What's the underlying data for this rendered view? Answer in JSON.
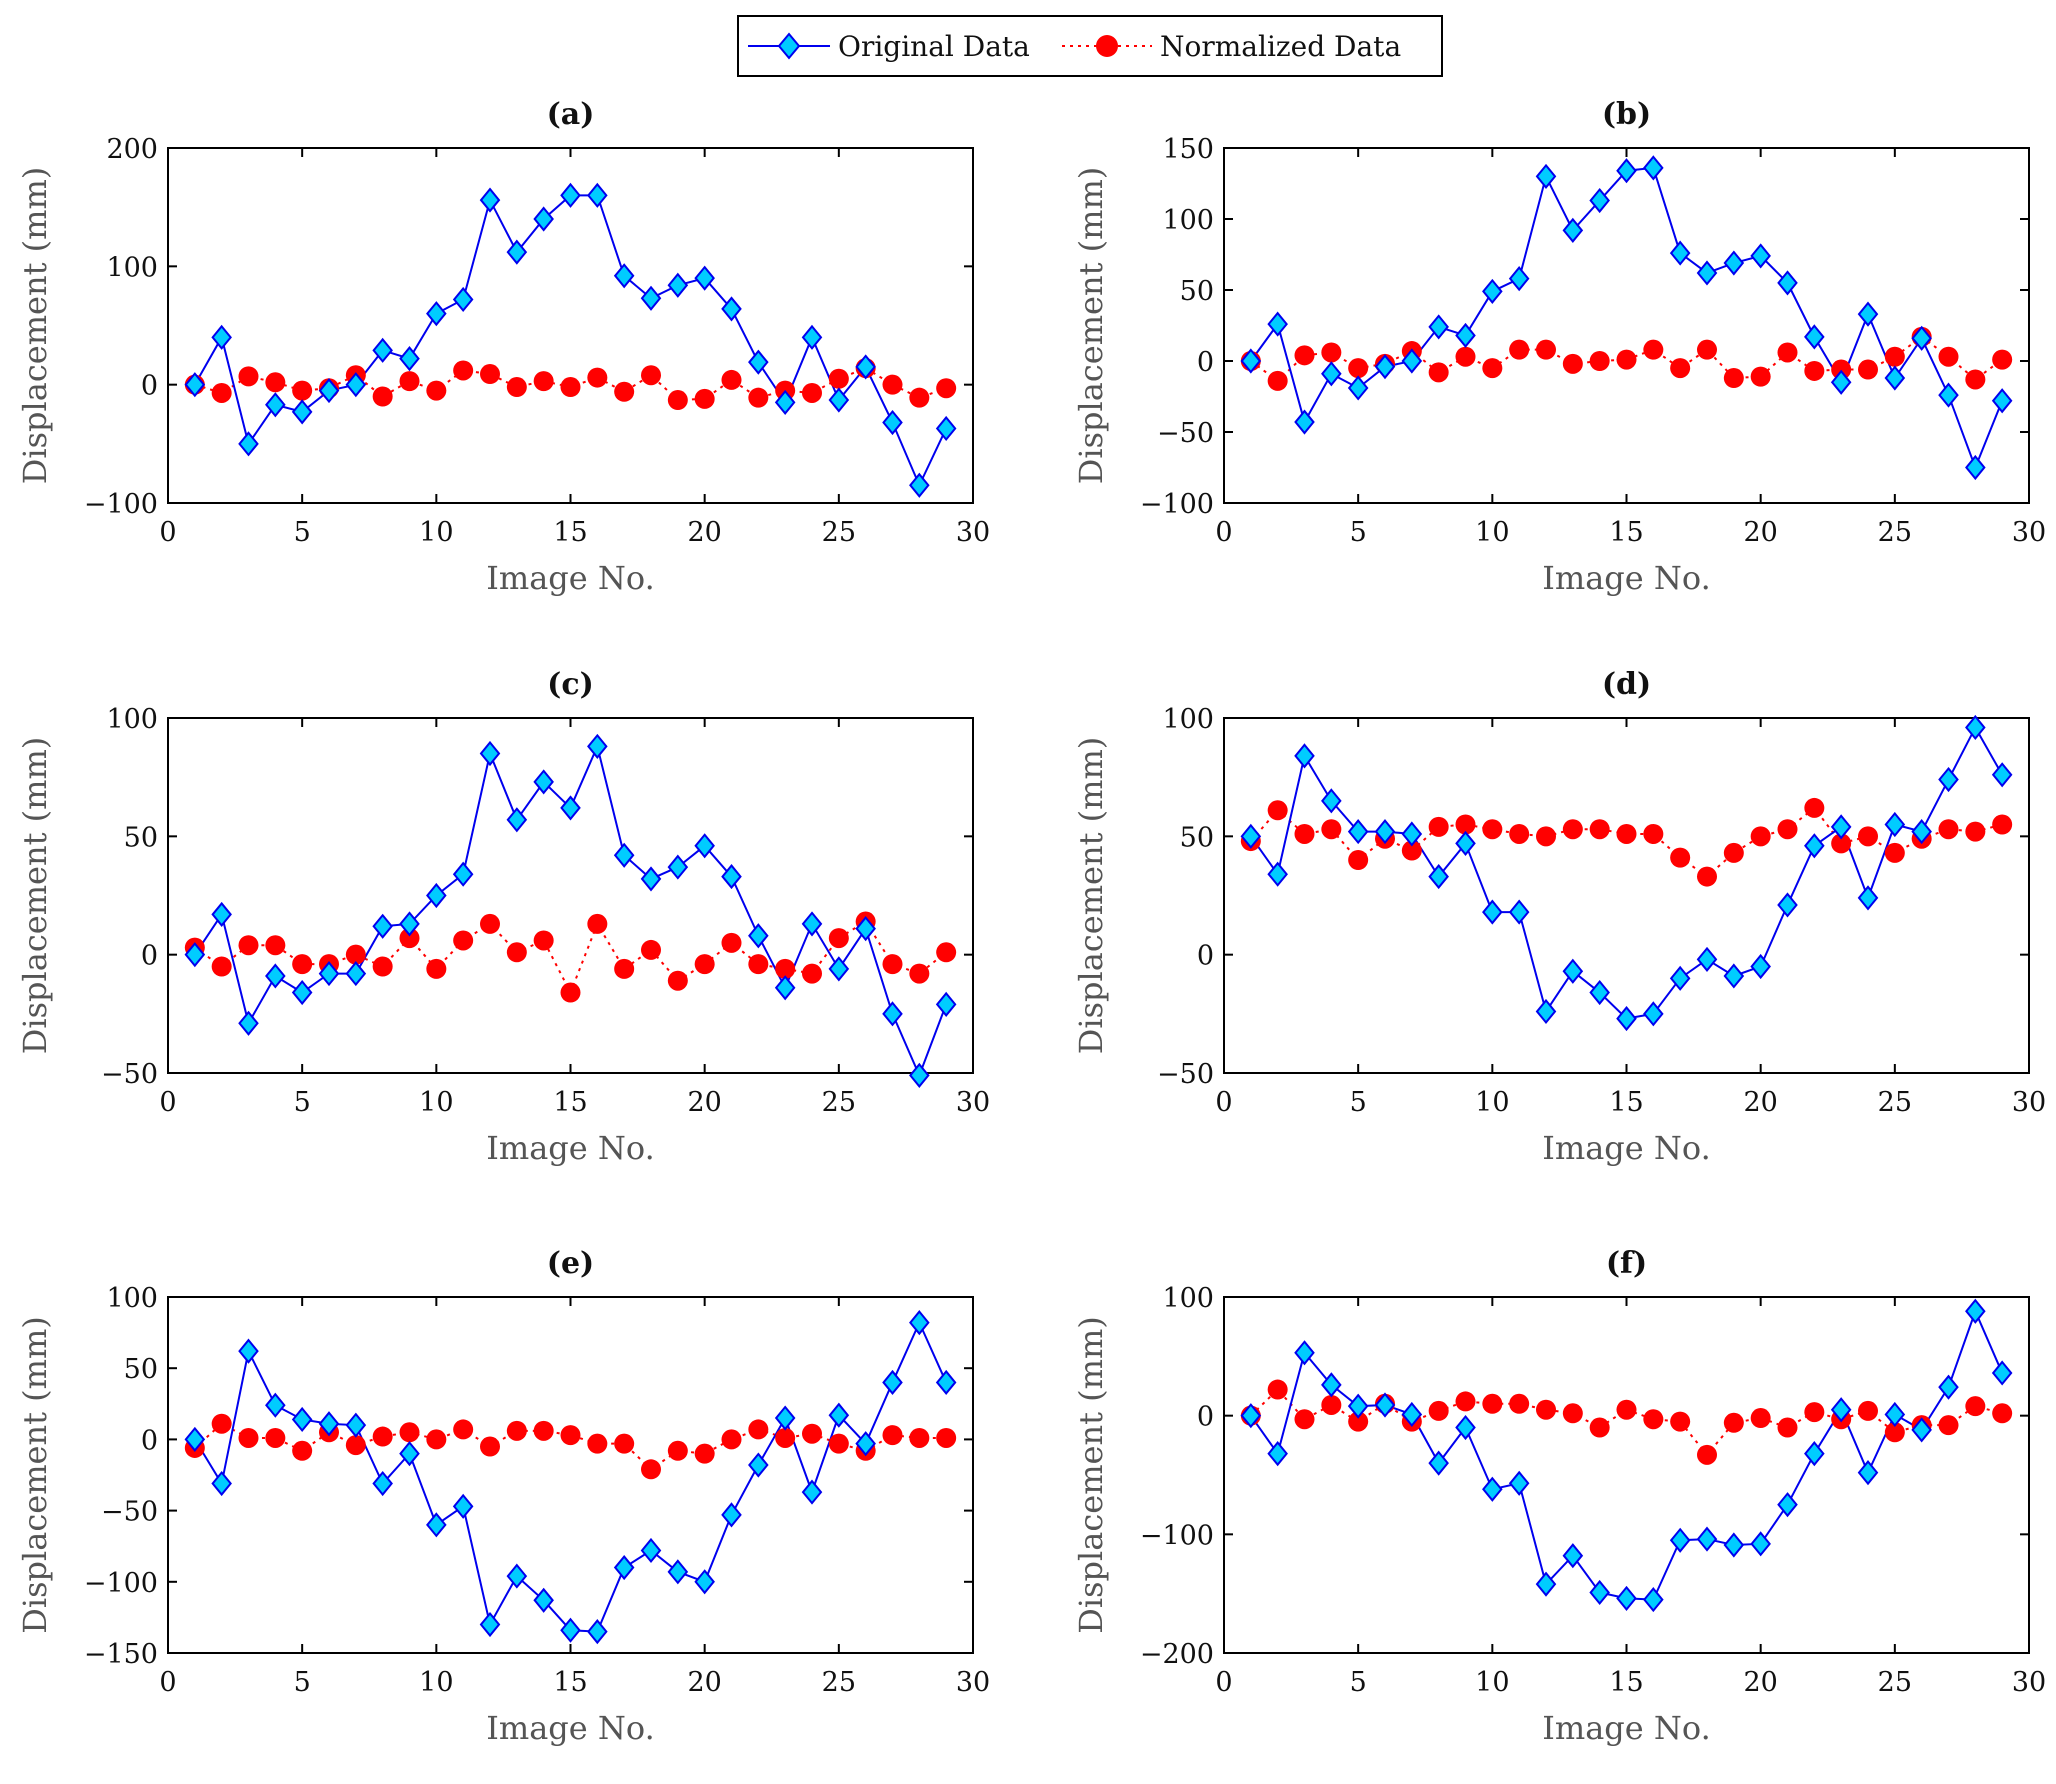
{
  "legend": {
    "original_label": "Original Data",
    "normalized_label": "Normalized Data"
  },
  "colors": {
    "original_line": "#0000ee",
    "original_marker": "#00ccff",
    "normalized": "#ff0000"
  },
  "chart_data": [
    {
      "type": "line",
      "title": "(a)",
      "xlabel": "Image No.",
      "ylabel": "Displacement (mm)",
      "xlim": [
        0,
        30
      ],
      "ylim": [
        -100,
        200
      ],
      "xticks": [
        0,
        5,
        10,
        15,
        20,
        25,
        30
      ],
      "yticks": [
        -100,
        0,
        100,
        200
      ],
      "x": [
        1,
        2,
        3,
        4,
        5,
        6,
        7,
        8,
        9,
        10,
        11,
        12,
        13,
        14,
        15,
        16,
        17,
        18,
        19,
        20,
        21,
        22,
        23,
        24,
        25,
        26,
        27,
        28,
        29
      ],
      "series": [
        {
          "name": "Original Data",
          "values": [
            0,
            40,
            -50,
            -17,
            -23,
            -5,
            0,
            29,
            22,
            60,
            72,
            156,
            112,
            140,
            160,
            160,
            92,
            73,
            84,
            90,
            64,
            19,
            -15,
            40,
            -13,
            15,
            -32,
            -85,
            -37
          ]
        },
        {
          "name": "Normalized Data",
          "values": [
            0,
            -7,
            7,
            2,
            -5,
            -3,
            8,
            -10,
            3,
            -5,
            12,
            9,
            -2,
            3,
            -2,
            6,
            -6,
            8,
            -13,
            -12,
            4,
            -11,
            -5,
            -7,
            5,
            14,
            0,
            -11,
            -3
          ]
        }
      ]
    },
    {
      "type": "line",
      "title": "(b)",
      "xlabel": "Image No.",
      "ylabel": "Displacement (mm)",
      "xlim": [
        0,
        30
      ],
      "ylim": [
        -100,
        150
      ],
      "xticks": [
        0,
        5,
        10,
        15,
        20,
        25,
        30
      ],
      "yticks": [
        -100,
        -50,
        0,
        50,
        100,
        150
      ],
      "x": [
        1,
        2,
        3,
        4,
        5,
        6,
        7,
        8,
        9,
        10,
        11,
        12,
        13,
        14,
        15,
        16,
        17,
        18,
        19,
        20,
        21,
        22,
        23,
        24,
        25,
        26,
        27,
        28,
        29
      ],
      "series": [
        {
          "name": "Original Data",
          "values": [
            0,
            26,
            -43,
            -9,
            -19,
            -4,
            0,
            24,
            18,
            49,
            58,
            130,
            92,
            113,
            134,
            136,
            76,
            62,
            69,
            74,
            55,
            17,
            -15,
            33,
            -12,
            16,
            -24,
            -75,
            -28
          ]
        },
        {
          "name": "Normalized Data",
          "values": [
            0,
            -14,
            4,
            6,
            -5,
            -2,
            7,
            -8,
            3,
            -5,
            8,
            8,
            -2,
            0,
            1,
            8,
            -5,
            8,
            -12,
            -11,
            6,
            -7,
            -6,
            -6,
            3,
            17,
            3,
            -13,
            1
          ]
        }
      ]
    },
    {
      "type": "line",
      "title": "(c)",
      "xlabel": "Image No.",
      "ylabel": "Displacement (mm)",
      "xlim": [
        0,
        30
      ],
      "ylim": [
        -50,
        100
      ],
      "xticks": [
        0,
        5,
        10,
        15,
        20,
        25,
        30
      ],
      "yticks": [
        -50,
        0,
        50,
        100
      ],
      "x": [
        1,
        2,
        3,
        4,
        5,
        6,
        7,
        8,
        9,
        10,
        11,
        12,
        13,
        14,
        15,
        16,
        17,
        18,
        19,
        20,
        21,
        22,
        23,
        24,
        25,
        26,
        27,
        28,
        29
      ],
      "series": [
        {
          "name": "Original Data",
          "values": [
            0,
            17,
            -29,
            -9,
            -16,
            -8,
            -8,
            12,
            13,
            25,
            34,
            85,
            57,
            73,
            62,
            88,
            42,
            32,
            37,
            46,
            33,
            8,
            -14,
            13,
            -6,
            11,
            -25,
            -51,
            -21
          ]
        },
        {
          "name": "Normalized Data",
          "values": [
            3,
            -5,
            4,
            4,
            -4,
            -4,
            0,
            -5,
            7,
            -6,
            6,
            13,
            1,
            6,
            -16,
            13,
            -6,
            2,
            -11,
            -4,
            5,
            -4,
            -6,
            -8,
            7,
            14,
            -4,
            -8,
            1
          ]
        }
      ]
    },
    {
      "type": "line",
      "title": "(d)",
      "xlabel": "Image No.",
      "ylabel": "Displacement (mm)",
      "xlim": [
        0,
        30
      ],
      "ylim": [
        -50,
        100
      ],
      "xticks": [
        0,
        5,
        10,
        15,
        20,
        25,
        30
      ],
      "yticks": [
        -50,
        0,
        50,
        100
      ],
      "x": [
        1,
        2,
        3,
        4,
        5,
        6,
        7,
        8,
        9,
        10,
        11,
        12,
        13,
        14,
        15,
        16,
        17,
        18,
        19,
        20,
        21,
        22,
        23,
        24,
        25,
        26,
        27,
        28,
        29
      ],
      "series": [
        {
          "name": "Original Data",
          "values": [
            50,
            34,
            84,
            65,
            52,
            52,
            51,
            33,
            47,
            18,
            18,
            -24,
            -7,
            -16,
            -27,
            -25,
            -10,
            -2,
            -9,
            -5,
            21,
            46,
            54,
            24,
            55,
            52,
            74,
            96,
            76
          ]
        },
        {
          "name": "Normalized Data",
          "values": [
            48,
            61,
            51,
            53,
            40,
            49,
            44,
            54,
            55,
            53,
            51,
            50,
            53,
            53,
            51,
            51,
            41,
            33,
            43,
            50,
            53,
            62,
            47,
            50,
            43,
            49,
            53,
            52,
            55
          ]
        }
      ]
    },
    {
      "type": "line",
      "title": "(e)",
      "xlabel": "Image No.",
      "ylabel": "Displacement (mm)",
      "xlim": [
        0,
        30
      ],
      "ylim": [
        -150,
        100
      ],
      "xticks": [
        0,
        5,
        10,
        15,
        20,
        25,
        30
      ],
      "yticks": [
        -150,
        -100,
        -50,
        0,
        50,
        100
      ],
      "x": [
        1,
        2,
        3,
        4,
        5,
        6,
        7,
        8,
        9,
        10,
        11,
        12,
        13,
        14,
        15,
        16,
        17,
        18,
        19,
        20,
        21,
        22,
        23,
        24,
        25,
        26,
        27,
        28,
        29
      ],
      "series": [
        {
          "name": "Original Data",
          "values": [
            0,
            -31,
            62,
            24,
            14,
            11,
            10,
            -31,
            -10,
            -60,
            -47,
            -130,
            -96,
            -113,
            -134,
            -135,
            -90,
            -78,
            -93,
            -100,
            -53,
            -18,
            15,
            -37,
            17,
            -3,
            40,
            82,
            40
          ]
        },
        {
          "name": "Normalized Data",
          "values": [
            -6,
            11,
            1,
            1,
            -8,
            5,
            -4,
            2,
            5,
            0,
            7,
            -5,
            6,
            6,
            3,
            -3,
            -3,
            -21,
            -8,
            -10,
            0,
            7,
            1,
            4,
            -3,
            -8,
            3,
            1,
            1
          ]
        }
      ]
    },
    {
      "type": "line",
      "title": "(f)",
      "xlabel": "Image No.",
      "ylabel": "Displacement (mm)",
      "xlim": [
        0,
        30
      ],
      "ylim": [
        -200,
        100
      ],
      "xticks": [
        0,
        5,
        10,
        15,
        20,
        25,
        30
      ],
      "yticks": [
        -200,
        -100,
        0,
        100
      ],
      "x": [
        1,
        2,
        3,
        4,
        5,
        6,
        7,
        8,
        9,
        10,
        11,
        12,
        13,
        14,
        15,
        16,
        17,
        18,
        19,
        20,
        21,
        22,
        23,
        24,
        25,
        26,
        27,
        28,
        29
      ],
      "series": [
        {
          "name": "Original Data",
          "values": [
            0,
            -32,
            53,
            26,
            8,
            9,
            1,
            -40,
            -10,
            -62,
            -57,
            -142,
            -118,
            -149,
            -154,
            -155,
            -105,
            -104,
            -109,
            -108,
            -75,
            -32,
            5,
            -48,
            1,
            -12,
            24,
            88,
            36
          ]
        },
        {
          "name": "Normalized Data",
          "values": [
            0,
            22,
            -3,
            9,
            -5,
            10,
            -5,
            4,
            12,
            10,
            10,
            5,
            2,
            -10,
            5,
            -3,
            -5,
            -33,
            -6,
            -2,
            -10,
            3,
            -3,
            4,
            -14,
            -8,
            -8,
            8,
            2
          ]
        }
      ]
    }
  ]
}
